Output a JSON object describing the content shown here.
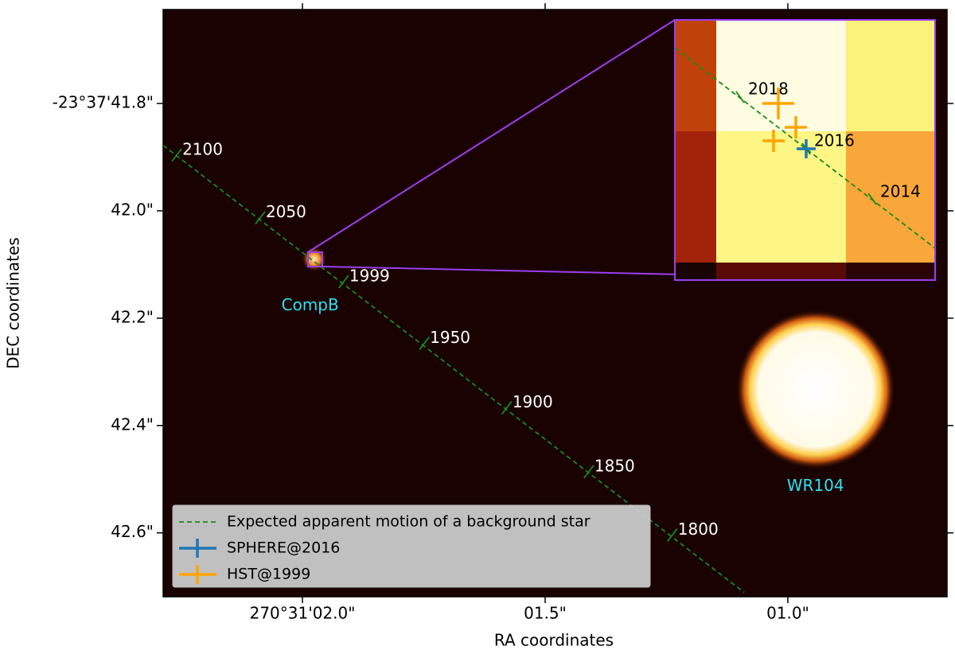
{
  "chart_data": {
    "type": "sky-image",
    "xlabel": "RA coordinates",
    "ylabel": "DEC coordinates",
    "xlim": [
      2.287,
      0.672
    ],
    "ylim": [
      42.719,
      41.625
    ],
    "xticks": [
      {
        "value": 2.0,
        "label": "270°31'02.0\""
      },
      {
        "value": 1.5,
        "label": "01.5\""
      },
      {
        "value": 1.0,
        "label": "01.0\""
      }
    ],
    "yticks": [
      {
        "value": 41.8,
        "label": "-23°37'41.8\""
      },
      {
        "value": 42.0,
        "label": "42.0\""
      },
      {
        "value": 42.2,
        "label": "42.2\""
      },
      {
        "value": 42.4,
        "label": "42.4\""
      },
      {
        "value": 42.6,
        "label": "42.6\""
      }
    ],
    "series": [
      {
        "name": "Expected apparent motion of a background star",
        "color": "#1a8a1a",
        "x": [
          2.287,
          1.09
        ],
        "y": [
          41.878,
          42.711
        ]
      },
      {
        "name": "SPHERE@2016",
        "color": "#1f77b4"
      },
      {
        "name": "HST@1999",
        "color": "#ffa500"
      }
    ],
    "epochs": [
      {
        "label": "2100",
        "x": 2.259,
        "y": 41.896
      },
      {
        "label": "2050",
        "x": 2.087,
        "y": 42.013
      },
      {
        "label": "1999",
        "x": 1.915,
        "y": 42.132
      },
      {
        "label": "1950",
        "x": 1.749,
        "y": 42.247
      },
      {
        "label": "1900",
        "x": 1.579,
        "y": 42.367
      },
      {
        "label": "1850",
        "x": 1.41,
        "y": 42.486
      },
      {
        "label": "1800",
        "x": 1.238,
        "y": 42.604
      }
    ],
    "sources": [
      {
        "label": "CompB",
        "x": 1.976,
        "y": 42.09
      },
      {
        "label": "WR104",
        "x": 0.943,
        "y": 42.333
      }
    ],
    "inset": {
      "labels": [
        "2018",
        "2016",
        "2014"
      ]
    }
  }
}
